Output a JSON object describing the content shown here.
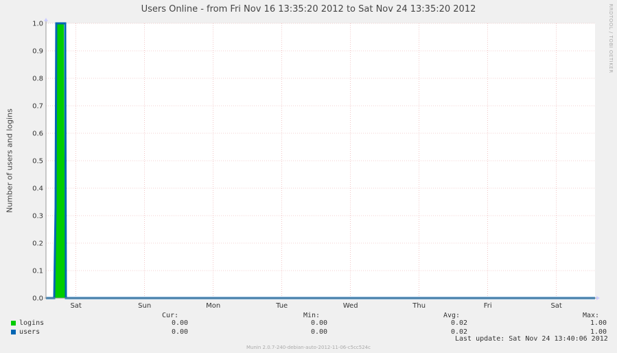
{
  "title": "Users Online - from Fri Nov 16 13:35:20 2012 to Sat Nov 24 13:35:20 2012",
  "watermark": "RRDTOOL / TOBI OETIKER",
  "footer": "Munin 2.0.7-240-debian-auto-2012-11-06-c5cc524c",
  "chart_data": {
    "type": "area",
    "title": "Users Online - from Fri Nov 16 13:35:20 2012 to Sat Nov 24 13:35:20 2012",
    "xlabel": "",
    "ylabel": "Number of users and logins",
    "ylim": [
      0,
      1.0
    ],
    "xlim_days": [
      0,
      8
    ],
    "yticks": [
      "0.0",
      "0.1",
      "0.2",
      "0.3",
      "0.4",
      "0.5",
      "0.6",
      "0.7",
      "0.8",
      "0.9",
      "1.0"
    ],
    "xticks": [
      {
        "label": "Sat",
        "day": 0.4366
      },
      {
        "label": "Sun",
        "day": 1.4366
      },
      {
        "label": "Mon",
        "day": 2.4366
      },
      {
        "label": "Tue",
        "day": 3.4366
      },
      {
        "label": "Wed",
        "day": 4.4366
      },
      {
        "label": "Thu",
        "day": 5.4366
      },
      {
        "label": "Fri",
        "day": 6.4366
      },
      {
        "label": "Sat",
        "day": 7.4366
      }
    ],
    "grid": true,
    "series": [
      {
        "name": "logins",
        "color": "#00cc00",
        "style": "area",
        "points": [
          [
            0.0,
            0
          ],
          [
            0.13,
            0
          ],
          [
            0.15,
            1.0
          ],
          [
            0.26,
            1.0
          ],
          [
            0.28,
            0
          ],
          [
            8.0,
            0
          ]
        ]
      },
      {
        "name": "users",
        "color": "#0066b3",
        "style": "line",
        "points": [
          [
            0.0,
            0
          ],
          [
            0.12,
            0
          ],
          [
            0.14,
            0.33
          ],
          [
            0.15,
            1.0
          ],
          [
            0.28,
            1.0
          ],
          [
            0.29,
            0
          ],
          [
            8.0,
            0
          ]
        ]
      }
    ]
  },
  "legend": {
    "headers": {
      "cur": "Cur:",
      "min": "Min:",
      "avg": "Avg:",
      "max": "Max:"
    },
    "rows": [
      {
        "name": "logins",
        "color": "#00cc00",
        "cur": "0.00",
        "min": "0.00",
        "avg": "0.02",
        "max": "1.00"
      },
      {
        "name": "users",
        "color": "#0066b3",
        "cur": "0.00",
        "min": "0.00",
        "avg": "0.02",
        "max": "1.00"
      }
    ]
  },
  "last_update": "Last update: Sat Nov 24 13:40:06 2012"
}
